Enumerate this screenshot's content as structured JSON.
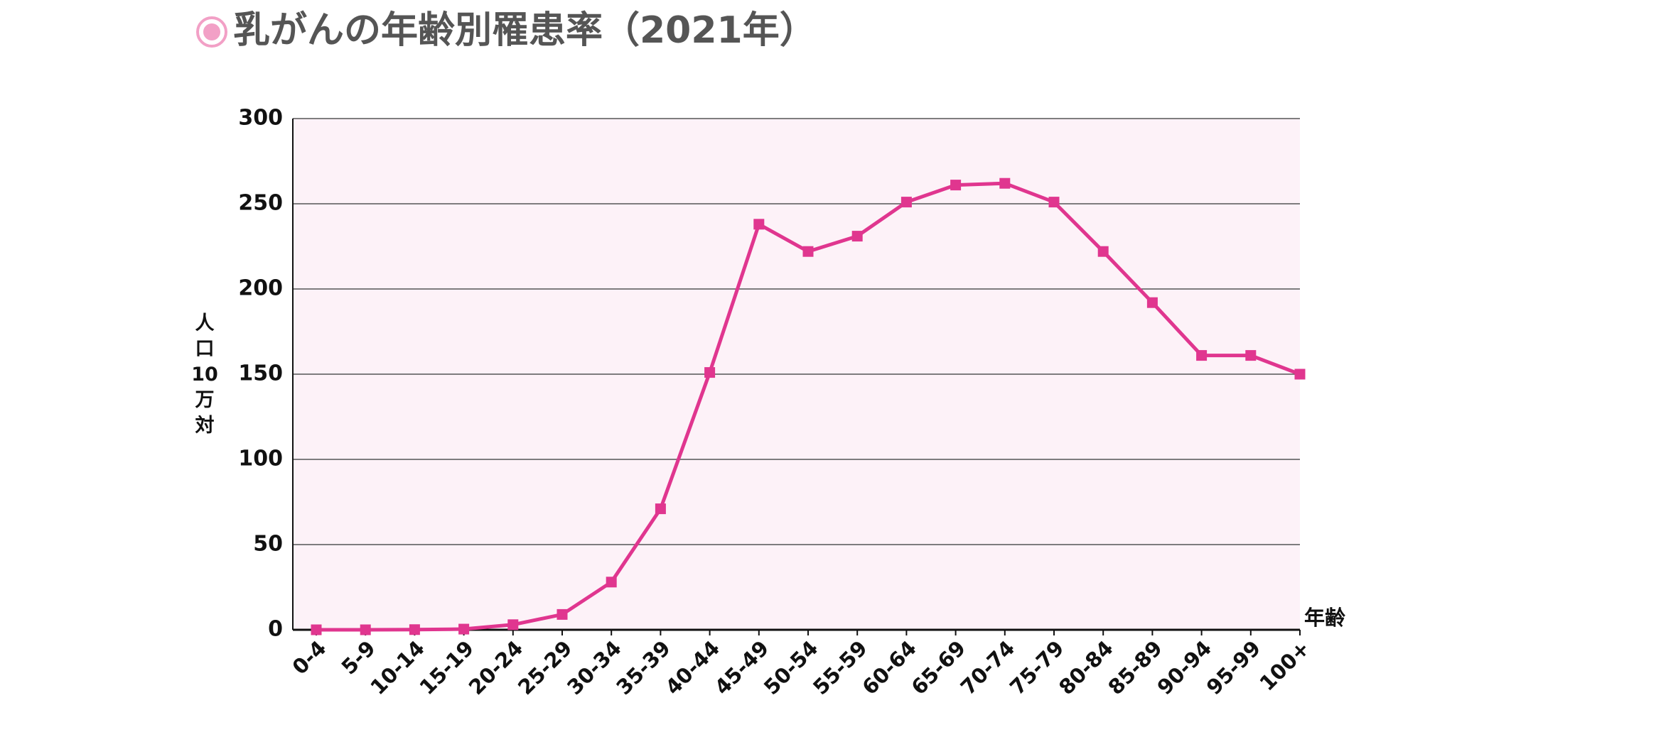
{
  "chart_data": {
    "type": "line",
    "title": "乳がんの年齢別罹患率（2021年）",
    "y_label": "人口10万対",
    "x_label": "年齢",
    "categories": [
      "0-4",
      "5-9",
      "10-14",
      "15-19",
      "20-24",
      "25-29",
      "30-34",
      "35-39",
      "40-44",
      "45-49",
      "50-54",
      "55-59",
      "60-64",
      "65-69",
      "70-74",
      "75-79",
      "80-84",
      "85-89",
      "90-94",
      "95-99",
      "100+"
    ],
    "series": [
      {
        "color": "#e0368f",
        "values": [
          0,
          0,
          0.1,
          0.4,
          3,
          9,
          28,
          71,
          151,
          238,
          222,
          231,
          251,
          261,
          262,
          251,
          222,
          192,
          161,
          161,
          150
        ]
      }
    ],
    "ylim": [
      0,
      300
    ],
    "yticks": [
      0,
      50,
      100,
      150,
      200,
      250,
      300
    ],
    "grid": true
  }
}
